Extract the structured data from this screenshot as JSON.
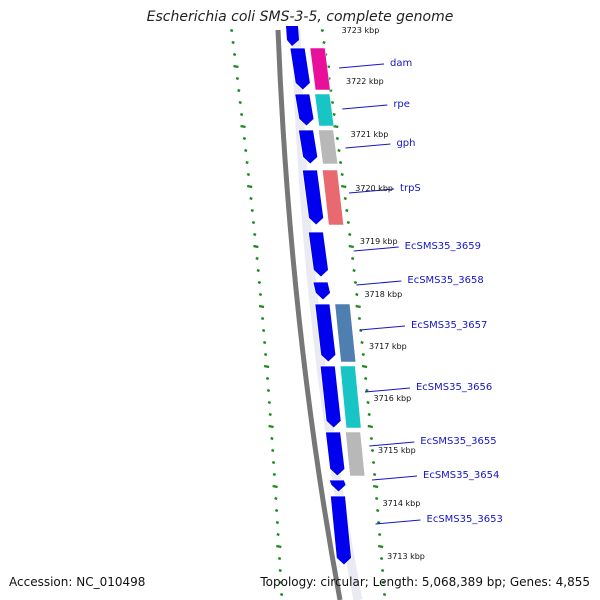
{
  "title": "Escherichia coli SMS-3-5, complete genome",
  "accession": "Accession: NC_010498",
  "summary": "Topology: circular; Length: 5,068,389 bp; Genes: 4,855",
  "colors": {
    "cds": "#0000ee",
    "backbone": "#777777",
    "gc_skew": "#1f8a1f",
    "label": "#1515c8"
  },
  "kbp_ticks": [
    "3723 kbp",
    "3722 kbp",
    "3721 kbp",
    "3720 kbp",
    "3719 kbp",
    "3718 kbp",
    "3717 kbp",
    "3716 kbp",
    "3715 kbp",
    "3714 kbp",
    "3713 kbp"
  ],
  "genes": [
    {
      "name": "dam",
      "cog_color": "#e8109a"
    },
    {
      "name": "rpe",
      "cog_color": "#18c4c4"
    },
    {
      "name": "gph",
      "cog_color": "#b8b8b8"
    },
    {
      "name": "trpS",
      "cog_color": "#e86a70"
    },
    {
      "name": "EcSMS35_3659",
      "cog_color": ""
    },
    {
      "name": "EcSMS35_3658",
      "cog_color": ""
    },
    {
      "name": "EcSMS35_3657",
      "cog_color": "#4f7fb0"
    },
    {
      "name": "EcSMS35_3656",
      "cog_color": "#18c4c4"
    },
    {
      "name": "EcSMS35_3655",
      "cog_color": "#b8b8b8"
    },
    {
      "name": "EcSMS35_3654",
      "cog_color": ""
    },
    {
      "name": "EcSMS35_3653",
      "cog_color": ""
    }
  ]
}
